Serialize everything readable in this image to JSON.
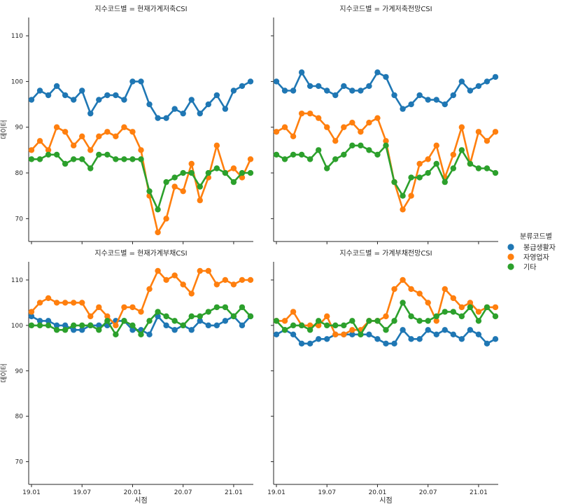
{
  "chart_data": {
    "type": "line",
    "facet_variable": "지수코드별",
    "xlabel": "시점",
    "ylabel": "데이터",
    "ylim": [
      65,
      114
    ],
    "yticks": [
      70,
      80,
      90,
      100,
      110
    ],
    "x": [
      "19.01",
      "19.02",
      "19.03",
      "19.04",
      "19.05",
      "19.06",
      "19.07",
      "19.08",
      "19.09",
      "19.10",
      "19.11",
      "19.12",
      "20.01",
      "20.02",
      "20.03",
      "20.04",
      "20.05",
      "20.06",
      "20.07",
      "20.08",
      "20.09",
      "20.10",
      "20.11",
      "20.12",
      "21.01",
      "21.02",
      "21.03"
    ],
    "xticks": [
      "19.01",
      "19.07",
      "20.01",
      "20.07",
      "21.01"
    ],
    "legend": {
      "title": "분류코드별",
      "position": "right",
      "entries": [
        {
          "name": "봉급생활자",
          "color": "#1f77b4"
        },
        {
          "name": "자영업자",
          "color": "#ff7f0e"
        },
        {
          "name": "기타",
          "color": "#2ca02c"
        }
      ]
    },
    "panels": [
      {
        "title": "지수코드별 = 현재가계저축CSI",
        "series": [
          {
            "name": "봉급생활자",
            "values": [
              96,
              98,
              97,
              99,
              97,
              96,
              98,
              93,
              96,
              97,
              97,
              96,
              100,
              100,
              95,
              92,
              92,
              94,
              93,
              96,
              93,
              95,
              97,
              94,
              98,
              99,
              100
            ]
          },
          {
            "name": "자영업자",
            "values": [
              85,
              87,
              85,
              90,
              89,
              86,
              88,
              85,
              88,
              89,
              88,
              90,
              89,
              85,
              75,
              67,
              70,
              77,
              76,
              82,
              74,
              79,
              86,
              80,
              81,
              79,
              83
            ]
          },
          {
            "name": "기타",
            "values": [
              83,
              83,
              84,
              84,
              82,
              83,
              83,
              81,
              84,
              84,
              83,
              83,
              83,
              83,
              76,
              72,
              78,
              79,
              80,
              80,
              77,
              80,
              81,
              80,
              78,
              80,
              80
            ]
          }
        ]
      },
      {
        "title": "지수코드별 = 가계저축전망CSI",
        "series": [
          {
            "name": "봉급생활자",
            "values": [
              100,
              98,
              98,
              102,
              99,
              99,
              98,
              97,
              99,
              98,
              98,
              99,
              102,
              101,
              97,
              94,
              95,
              97,
              96,
              96,
              95,
              97,
              100,
              98,
              99,
              100,
              101
            ]
          },
          {
            "name": "자영업자",
            "values": [
              89,
              90,
              88,
              93,
              93,
              92,
              90,
              87,
              90,
              91,
              89,
              91,
              92,
              87,
              78,
              72,
              75,
              82,
              83,
              86,
              79,
              84,
              90,
              82,
              89,
              87,
              89
            ]
          },
          {
            "name": "기타",
            "values": [
              84,
              83,
              84,
              84,
              83,
              85,
              81,
              83,
              84,
              86,
              86,
              85,
              84,
              86,
              78,
              75,
              79,
              79,
              80,
              82,
              78,
              81,
              85,
              82,
              81,
              81,
              80
            ]
          }
        ]
      },
      {
        "title": "지수코드별 = 현재가계부채CSI",
        "series": [
          {
            "name": "봉급생활자",
            "values": [
              102,
              101,
              101,
              100,
              100,
              99,
              99,
              100,
              100,
              100,
              101,
              101,
              99,
              99,
              98,
              102,
              100,
              99,
              100,
              99,
              101,
              100,
              100,
              101,
              102,
              100,
              102
            ]
          },
          {
            "name": "자영업자",
            "values": [
              103,
              105,
              106,
              105,
              105,
              105,
              105,
              102,
              104,
              102,
              100,
              104,
              104,
              103,
              108,
              112,
              110,
              111,
              109,
              107,
              112,
              112,
              109,
              110,
              109,
              110,
              110
            ]
          },
          {
            "name": "기타",
            "values": [
              100,
              100,
              100,
              99,
              99,
              100,
              100,
              100,
              99,
              101,
              98,
              101,
              100,
              98,
              101,
              103,
              102,
              101,
              100,
              102,
              102,
              103,
              104,
              104,
              102,
              104,
              102
            ]
          }
        ]
      },
      {
        "title": "지수코드별 = 가계부채전망CSI",
        "series": [
          {
            "name": "봉급생활자",
            "values": [
              98,
              99,
              98,
              96,
              96,
              97,
              97,
              98,
              98,
              98,
              98,
              98,
              97,
              96,
              96,
              99,
              97,
              97,
              99,
              98,
              99,
              98,
              97,
              99,
              98,
              96,
              97
            ]
          },
          {
            "name": "자영업자",
            "values": [
              101,
              101,
              103,
              100,
              100,
              100,
              102,
              98,
              98,
              99,
              99,
              101,
              101,
              102,
              108,
              110,
              108,
              107,
              105,
              101,
              108,
              106,
              104,
              105,
              103,
              104,
              104
            ]
          },
          {
            "name": "기타",
            "values": [
              101,
              99,
              100,
              100,
              99,
              101,
              100,
              100,
              100,
              101,
              98,
              101,
              101,
              99,
              101,
              105,
              102,
              101,
              101,
              102,
              103,
              103,
              102,
              104,
              101,
              104,
              102
            ]
          }
        ]
      }
    ]
  }
}
